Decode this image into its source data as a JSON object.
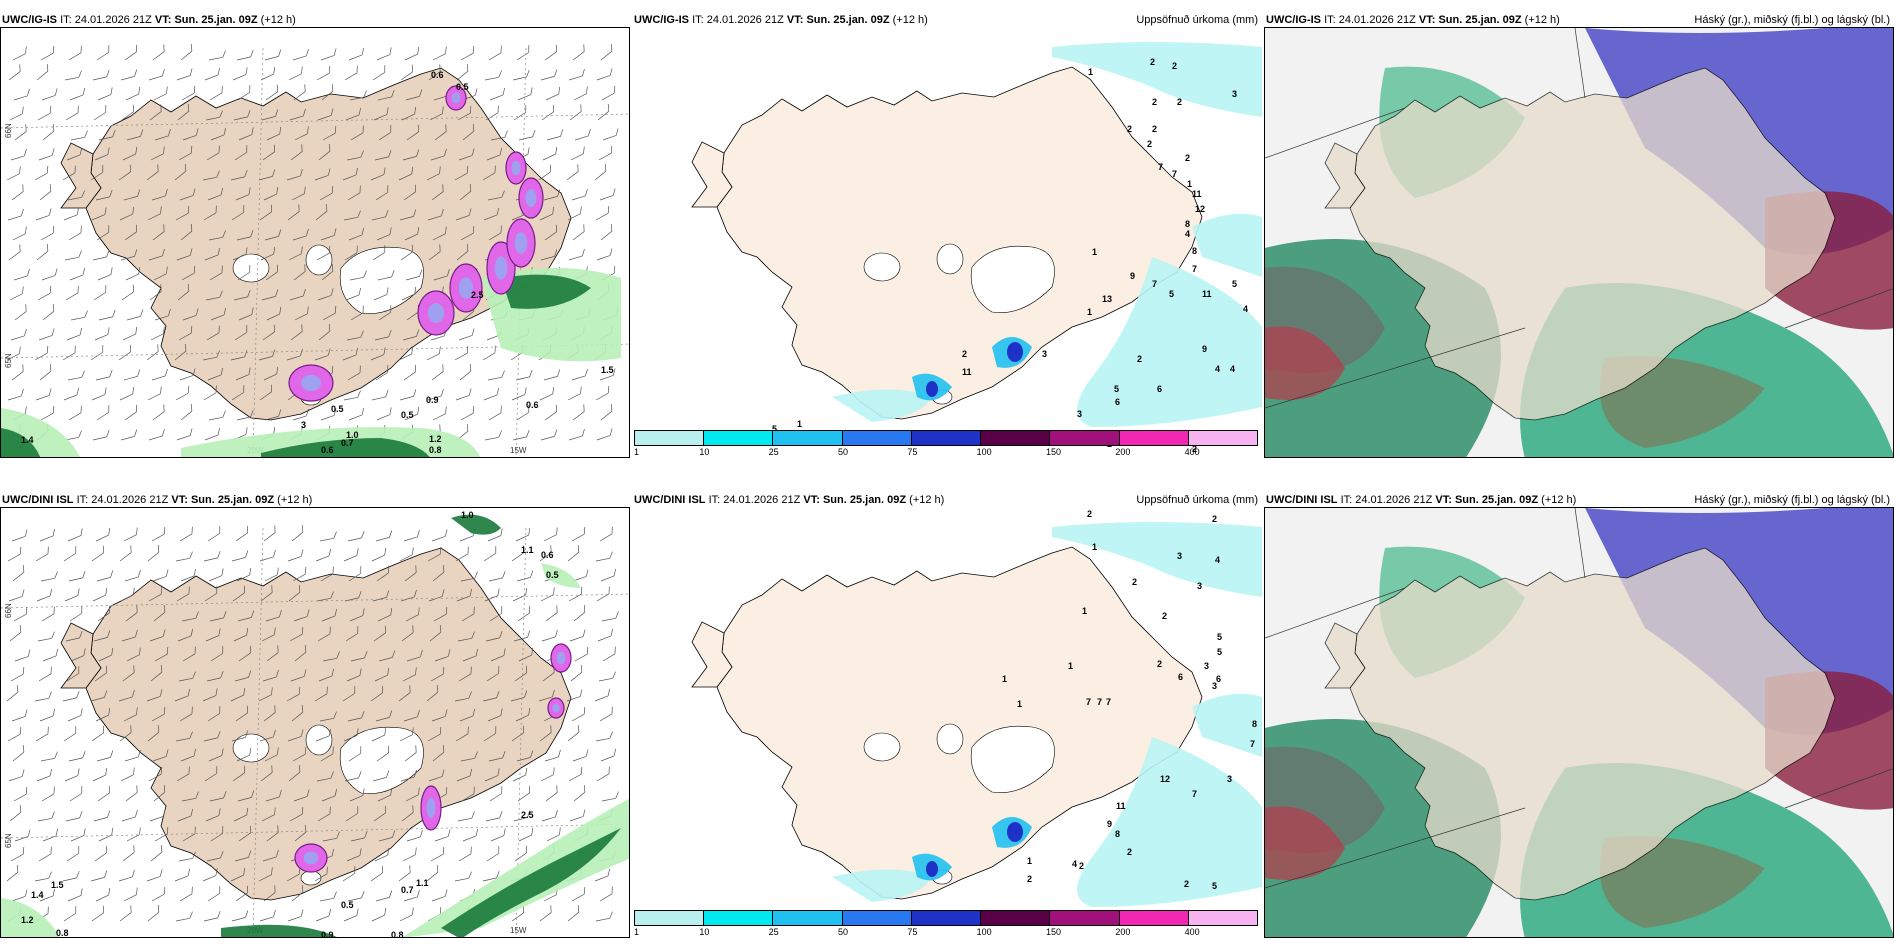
{
  "panels": [
    {
      "model": "UWC/IG-IS",
      "it_label": "IT:",
      "it": "24.01.2026 21Z",
      "vt_label": "VT:",
      "vt": "Sun. 25.jan. 09Z",
      "lead": "(+12 h)",
      "right": ""
    },
    {
      "model": "UWC/IG-IS",
      "it_label": "IT:",
      "it": "24.01.2026 21Z",
      "vt_label": "VT:",
      "vt": "Sun. 25.jan. 09Z",
      "lead": "(+12 h)",
      "right": "Uppsöfnuð úrkoma (mm)"
    },
    {
      "model": "UWC/IG-IS",
      "it_label": "IT:",
      "it": "24.01.2026 21Z",
      "vt_label": "VT:",
      "vt": "Sun. 25.jan. 09Z",
      "lead": "(+12 h)",
      "right": "Háský (gr.), miðský (fj.bl.) og lágský (bl.)"
    },
    {
      "model": "UWC/DINI ISL",
      "it_label": "IT:",
      "it": "24.01.2026 21Z",
      "vt_label": "VT:",
      "vt": "Sun. 25.jan. 09Z",
      "lead": "(+12 h)",
      "right": ""
    },
    {
      "model": "UWC/DINI ISL",
      "it_label": "IT:",
      "it": "24.01.2026 21Z",
      "vt_label": "VT:",
      "vt": "Sun. 25.jan. 09Z",
      "lead": "(+12 h)",
      "right": "Uppsöfnuð úrkoma (mm)"
    },
    {
      "model": "UWC/DINI ISL",
      "it_label": "IT:",
      "it": "24.01.2026 21Z",
      "vt_label": "VT:",
      "vt": "Sun. 25.jan. 09Z",
      "lead": "(+12 h)",
      "right": "Háský (gr.), miðský (fj.bl.) og lágský (bl.)"
    }
  ],
  "axes": {
    "lon_a": "20W",
    "lon_b": "15W",
    "lat_a": "66N",
    "lat_b": "64N",
    "lat_c": "65N"
  },
  "colorbar": {
    "ticks": [
      "1",
      "10",
      "25",
      "50",
      "75",
      "100",
      "150",
      "200",
      "400"
    ],
    "colors": [
      "#b8f0f0",
      "#00e8f0",
      "#20c0f0",
      "#2878f0",
      "#1e32c8",
      "#5a0046",
      "#a0107a",
      "#f028b4",
      "#f8b4f0"
    ]
  },
  "labels": {
    "p1": [
      "0.6",
      "0.5",
      "3",
      "0.9",
      "0.5",
      "1.0",
      "1.5",
      "0.6",
      "1.4",
      "0.9",
      "0.6",
      "0.7",
      "1.1",
      "0.8",
      "1.2",
      "0.8",
      "0.9",
      "1.1",
      "0.5",
      "2.5"
    ],
    "p2": [
      "1",
      "2",
      "2",
      "2",
      "2",
      "3",
      "2",
      "2",
      "2",
      "2",
      "7",
      "7",
      "1",
      "11",
      "12",
      "4",
      "8",
      "5",
      "9",
      "7",
      "5",
      "11",
      "4",
      "3",
      "7",
      "8",
      "13",
      "1",
      "3",
      "2",
      "11",
      "9",
      "2",
      "4",
      "4",
      "5",
      "6",
      "6",
      "3",
      "9",
      "8",
      "2",
      "1",
      "5",
      "5",
      "2",
      "1"
    ],
    "p4": [
      "1.0",
      "1.1",
      "0.6",
      "0.5",
      "1.4",
      "1.5",
      "1.2",
      "0.8",
      "0.5",
      "0.9",
      "0.8",
      "0.7",
      "1.1",
      "2.5"
    ],
    "p5": [
      "2",
      "2",
      "1",
      "3",
      "4",
      "2",
      "3",
      "2",
      "1",
      "5",
      "5",
      "2",
      "3",
      "6",
      "6",
      "3",
      "8",
      "7",
      "12",
      "7",
      "11",
      "8",
      "9",
      "3",
      "4",
      "2",
      "2",
      "5",
      "2",
      "1",
      "1",
      "2",
      "1",
      "1",
      "7",
      "7",
      "7"
    ]
  },
  "colors": {
    "land": "#e8d4c0",
    "land_light": "#fbeee2",
    "sea": "#ffffff",
    "green_dark": "#1a7a3a",
    "green_light": "#b8f0b8",
    "purple": "#e068e8",
    "cyan": "#b8f4f4"
  }
}
